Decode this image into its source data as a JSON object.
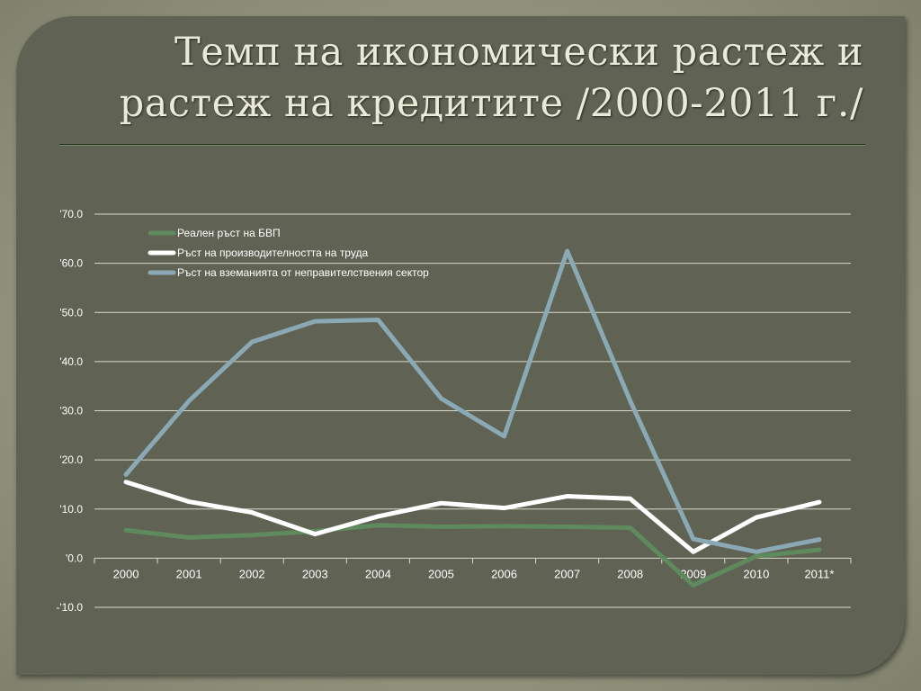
{
  "title": "Темп на икономически растеж и растеж на кредитите  /2000-2011 г./",
  "colors": {
    "background": "#606254",
    "series_gdp": "#5e8a5e",
    "series_productivity": "#ffffff",
    "series_credit": "#8aa9b5"
  },
  "chart_data": {
    "type": "line",
    "categories": [
      "2000",
      "2001",
      "2002",
      "2003",
      "2004",
      "2005",
      "2006",
      "2007",
      "2008",
      "2009",
      "2010",
      "2011*"
    ],
    "ylim": [
      -10,
      70
    ],
    "yticks": [
      -10,
      0,
      10,
      20,
      30,
      40,
      50,
      60,
      70
    ],
    "ytick_labels": [
      "-'10.0",
      "'0.0",
      "'10.0",
      "'20.0",
      "'30.0",
      "'40.0",
      "'50.0",
      "'60.0",
      "'70.0"
    ],
    "grid": true,
    "legend_position": "top-left",
    "series": [
      {
        "name": "Реален ръст на БВП",
        "color": "#5e8a5e",
        "values": [
          5.7,
          4.2,
          4.7,
          5.5,
          6.7,
          6.4,
          6.5,
          6.4,
          6.2,
          -5.5,
          0.4,
          1.7
        ]
      },
      {
        "name": "Ръст на производителността на труда",
        "color": "#ffffff",
        "values": [
          15.5,
          11.5,
          9.3,
          4.9,
          8.5,
          11.2,
          10.2,
          12.6,
          12.1,
          1.3,
          8.3,
          11.4
        ]
      },
      {
        "name": "Ръст на вземанията от неправителствения сектор",
        "color": "#8aa9b5",
        "values": [
          17,
          32,
          44,
          48.2,
          48.5,
          32.5,
          24.8,
          62.5,
          32,
          3.9,
          1.3,
          3.8
        ]
      }
    ]
  }
}
